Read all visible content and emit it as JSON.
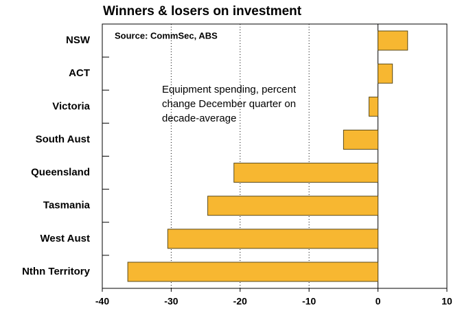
{
  "chart_data": {
    "type": "bar",
    "orientation": "horizontal",
    "title": "Winners & losers on investment",
    "source": "Source: CommSec, ABS",
    "annotation": [
      "Equipment spending, percent",
      "change December quarter on",
      "decade-average"
    ],
    "categories": [
      "NSW",
      "ACT",
      "Victoria",
      "South Aust",
      "Queensland",
      "Tasmania",
      "West Aust",
      "Nthn Territory"
    ],
    "values": [
      4.3,
      2.1,
      -1.3,
      -5,
      -20.9,
      -24.7,
      -30.5,
      -36.3
    ],
    "color": "#f7b731",
    "xlim": [
      -40,
      10
    ],
    "xticks": [
      -40,
      -30,
      -20,
      -10,
      0,
      10
    ],
    "grid": true
  }
}
